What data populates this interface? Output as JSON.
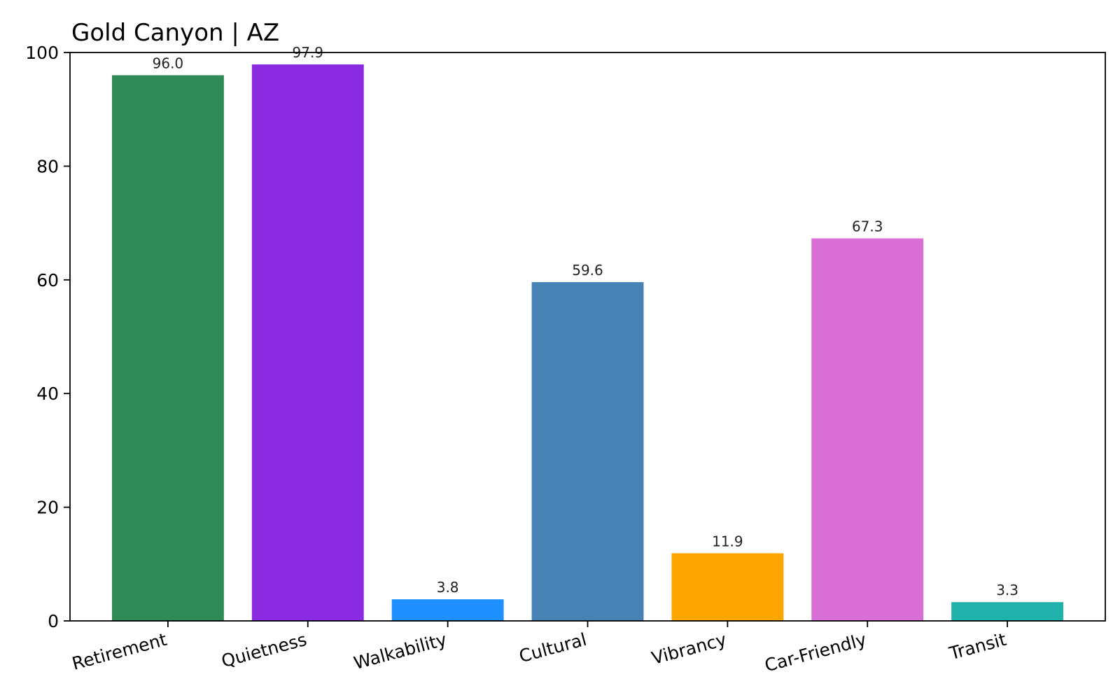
{
  "chart_data": {
    "type": "bar",
    "title": "Gold Canyon | AZ",
    "xlabel": "",
    "ylabel": "",
    "ylim": [
      0,
      100
    ],
    "yticks": [
      0,
      20,
      40,
      60,
      80,
      100
    ],
    "grid": false,
    "legend": "none",
    "categories": [
      "Retirement",
      "Quietness",
      "Walkability",
      "Cultural",
      "Vibrancy",
      "Car-Friendly",
      "Transit"
    ],
    "values": [
      96.0,
      97.9,
      3.8,
      59.6,
      11.9,
      67.3,
      3.3
    ],
    "value_labels": [
      "96.0",
      "97.9",
      "3.8",
      "59.6",
      "11.9",
      "67.3",
      "3.3"
    ],
    "colors": [
      "#2e8b57",
      "#8a2be2",
      "#1e90ff",
      "#4682b4",
      "#ffa500",
      "#da70d6",
      "#20b2aa"
    ]
  }
}
